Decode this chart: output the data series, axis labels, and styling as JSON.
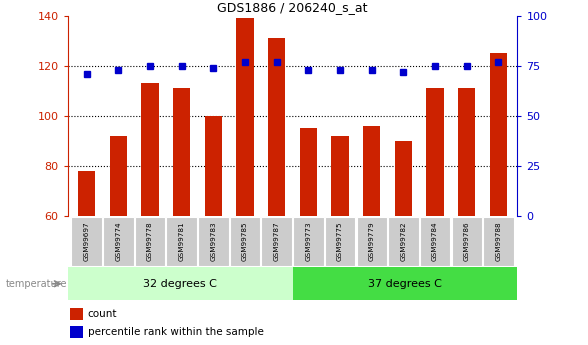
{
  "title": "GDS1886 / 206240_s_at",
  "categories": [
    "GSM99697",
    "GSM99774",
    "GSM99778",
    "GSM99781",
    "GSM99783",
    "GSM99785",
    "GSM99787",
    "GSM99773",
    "GSM99775",
    "GSM99779",
    "GSM99782",
    "GSM99784",
    "GSM99786",
    "GSM99788"
  ],
  "bar_values": [
    78,
    92,
    113,
    111,
    100,
    139,
    131,
    95,
    92,
    96,
    90,
    111,
    111,
    125
  ],
  "percentile_values": [
    71,
    73,
    75,
    75,
    74,
    77,
    77,
    73,
    73,
    73,
    72,
    75,
    75,
    77
  ],
  "group1_count": 7,
  "group2_count": 7,
  "group1_label": "32 degrees C",
  "group2_label": "37 degrees C",
  "temperature_label": "temperature",
  "bar_color": "#cc2200",
  "percentile_color": "#0000cc",
  "group1_bg": "#ccffcc",
  "group2_bg": "#44dd44",
  "tick_label_bg": "#cccccc",
  "ylim_left": [
    60,
    140
  ],
  "ylim_right": [
    0,
    100
  ],
  "yticks_left": [
    60,
    80,
    100,
    120,
    140
  ],
  "yticks_right": [
    0,
    25,
    50,
    75,
    100
  ],
  "grid_lines": [
    80,
    100,
    120
  ],
  "legend_count_label": "count",
  "legend_percentile_label": "percentile rank within the sample",
  "figsize": [
    5.88,
    3.45
  ],
  "dpi": 100
}
